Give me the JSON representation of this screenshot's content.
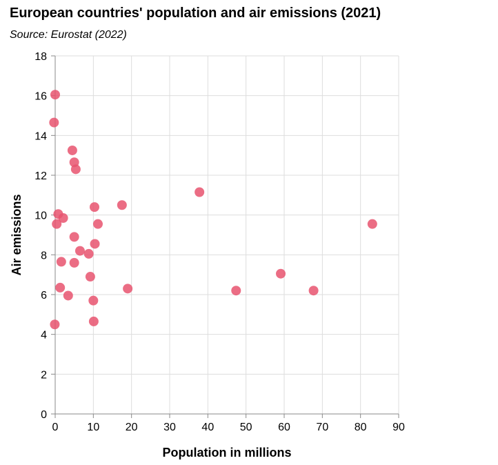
{
  "chart_data": {
    "type": "scatter",
    "title": "European countries' population and air emissions (2021)",
    "subtitle": "Source: Eurostat (2022)",
    "xlabel": "Population in millions",
    "ylabel": "Air emissions",
    "xlim": [
      0,
      90
    ],
    "ylim": [
      0,
      18
    ],
    "x_ticks": [
      0,
      10,
      20,
      30,
      40,
      50,
      60,
      70,
      80,
      90
    ],
    "y_ticks": [
      0,
      2,
      4,
      6,
      8,
      10,
      12,
      14,
      16,
      18
    ],
    "grid": true,
    "marker_color": "#e8546e",
    "points": [
      {
        "x": 0.0,
        "y": 16.05
      },
      {
        "x": -0.3,
        "y": 14.65
      },
      {
        "x": 4.5,
        "y": 13.25
      },
      {
        "x": 5.0,
        "y": 12.65
      },
      {
        "x": 5.4,
        "y": 12.3
      },
      {
        "x": 37.8,
        "y": 11.15
      },
      {
        "x": 17.5,
        "y": 10.5
      },
      {
        "x": 10.3,
        "y": 10.4
      },
      {
        "x": 0.8,
        "y": 10.05
      },
      {
        "x": 2.1,
        "y": 9.85
      },
      {
        "x": 0.4,
        "y": 9.55
      },
      {
        "x": 11.2,
        "y": 9.55
      },
      {
        "x": 83.1,
        "y": 9.55
      },
      {
        "x": 5.0,
        "y": 8.9
      },
      {
        "x": 10.4,
        "y": 8.55
      },
      {
        "x": 6.5,
        "y": 8.2
      },
      {
        "x": 8.8,
        "y": 8.05
      },
      {
        "x": 1.6,
        "y": 7.65
      },
      {
        "x": 5.0,
        "y": 7.6
      },
      {
        "x": 59.1,
        "y": 7.05
      },
      {
        "x": 9.2,
        "y": 6.9
      },
      {
        "x": 1.3,
        "y": 6.35
      },
      {
        "x": 19.0,
        "y": 6.3
      },
      {
        "x": 47.4,
        "y": 6.2
      },
      {
        "x": 67.7,
        "y": 6.2
      },
      {
        "x": 3.4,
        "y": 5.95
      },
      {
        "x": 10.0,
        "y": 5.7
      },
      {
        "x": 10.1,
        "y": 4.65
      },
      {
        "x": -0.1,
        "y": 4.5
      }
    ]
  }
}
